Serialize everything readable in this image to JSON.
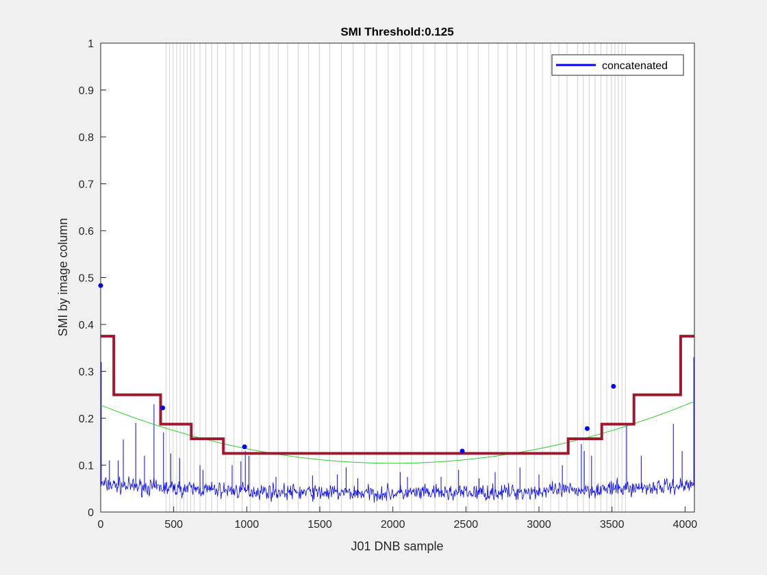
{
  "chart_data": {
    "type": "line",
    "title": "SMI Threshold:0.125",
    "xlabel": "J01 DNB sample",
    "ylabel": "SMI by image column",
    "xlim": [
      0,
      4064
    ],
    "ylim": [
      0,
      1
    ],
    "x_ticks": [
      0,
      500,
      1000,
      1500,
      2000,
      2500,
      3000,
      3500,
      4000
    ],
    "x_tick_labels": [
      "0",
      "500",
      "1000",
      "1500",
      "2000",
      "2500",
      "3000",
      "3500",
      "4000"
    ],
    "y_ticks": [
      0,
      0.1,
      0.2,
      0.3,
      0.4,
      0.5,
      0.6,
      0.7,
      0.8,
      0.9,
      1
    ],
    "y_tick_labels": [
      "0",
      "0.1",
      "0.2",
      "0.3",
      "0.4",
      "0.5",
      "0.6",
      "0.7",
      "0.8",
      "0.9",
      "1"
    ],
    "grid": false,
    "legend": {
      "placement": "top-right",
      "entries": [
        {
          "label": "concatenated",
          "color": "#0000ff"
        }
      ]
    },
    "vertical_lines_x": [
      448,
      472,
      496,
      520,
      544,
      568,
      592,
      616,
      640,
      680,
      720,
      760,
      800,
      856,
      912,
      968,
      1024,
      1088,
      1152,
      1216,
      1280,
      1352,
      1424,
      1496,
      1568,
      1648,
      1728,
      1808,
      1888,
      1968,
      2048,
      2128,
      2208,
      2288,
      2368,
      2440,
      2512,
      2584,
      2656,
      2720,
      2784,
      2848,
      2912,
      2968,
      3024,
      3080,
      3136,
      3192,
      3264,
      3304,
      3344,
      3384,
      3424,
      3464,
      3496,
      3520,
      3544,
      3568,
      3592
    ],
    "series": [
      {
        "name": "concatenated",
        "color": "#0000ff",
        "kind": "noisy-trace",
        "baseline_quadratic": {
          "a": 4.4e-09,
          "center": 2050,
          "min": 0.04
        },
        "noise_amplitude": 0.012,
        "spikes": [
          {
            "x": 4,
            "y": 0.32
          },
          {
            "x": 60,
            "y": 0.11
          },
          {
            "x": 120,
            "y": 0.11
          },
          {
            "x": 155,
            "y": 0.155
          },
          {
            "x": 240,
            "y": 0.19
          },
          {
            "x": 300,
            "y": 0.12
          },
          {
            "x": 365,
            "y": 0.23
          },
          {
            "x": 430,
            "y": 0.17
          },
          {
            "x": 480,
            "y": 0.125
          },
          {
            "x": 540,
            "y": 0.115
          },
          {
            "x": 680,
            "y": 0.1
          },
          {
            "x": 700,
            "y": 0.09
          },
          {
            "x": 900,
            "y": 0.1
          },
          {
            "x": 960,
            "y": 0.108
          },
          {
            "x": 990,
            "y": 0.13
          },
          {
            "x": 1015,
            "y": 0.12
          },
          {
            "x": 1200,
            "y": 0.075
          },
          {
            "x": 1450,
            "y": 0.078
          },
          {
            "x": 1620,
            "y": 0.08
          },
          {
            "x": 1680,
            "y": 0.095
          },
          {
            "x": 1760,
            "y": 0.072
          },
          {
            "x": 2050,
            "y": 0.085
          },
          {
            "x": 2100,
            "y": 0.075
          },
          {
            "x": 2330,
            "y": 0.075
          },
          {
            "x": 2450,
            "y": 0.09
          },
          {
            "x": 2590,
            "y": 0.072
          },
          {
            "x": 2700,
            "y": 0.085
          },
          {
            "x": 2870,
            "y": 0.095
          },
          {
            "x": 3000,
            "y": 0.08
          },
          {
            "x": 3160,
            "y": 0.1
          },
          {
            "x": 3290,
            "y": 0.145
          },
          {
            "x": 3310,
            "y": 0.13
          },
          {
            "x": 3360,
            "y": 0.12
          },
          {
            "x": 3600,
            "y": 0.185
          },
          {
            "x": 3700,
            "y": 0.12
          },
          {
            "x": 3920,
            "y": 0.188
          },
          {
            "x": 3980,
            "y": 0.13
          },
          {
            "x": 4060,
            "y": 0.33
          }
        ]
      },
      {
        "name": "",
        "color": "#a0182d",
        "kind": "step",
        "points": [
          [
            0,
            0.375
          ],
          [
            90,
            0.375
          ],
          [
            90,
            0.25
          ],
          [
            410,
            0.25
          ],
          [
            410,
            0.1875
          ],
          [
            620,
            0.1875
          ],
          [
            620,
            0.15625
          ],
          [
            840,
            0.15625
          ],
          [
            840,
            0.125
          ],
          [
            3200,
            0.125
          ],
          [
            3200,
            0.15625
          ],
          [
            3430,
            0.15625
          ],
          [
            3430,
            0.1875
          ],
          [
            3650,
            0.1875
          ],
          [
            3650,
            0.25
          ],
          [
            3970,
            0.25
          ],
          [
            3970,
            0.375
          ],
          [
            4064,
            0.375
          ]
        ]
      },
      {
        "name": "",
        "color": "#2ecc2e",
        "kind": "quadratic-fit",
        "coefficients": {
          "a": 3.1e-08,
          "center": 2000,
          "min": 0.104
        }
      },
      {
        "name": "",
        "color": "#0000ff",
        "kind": "scatter",
        "points": [
          [
            0,
            0.483
          ],
          [
            425,
            0.222
          ],
          [
            985,
            0.139
          ],
          [
            2475,
            0.13
          ],
          [
            3330,
            0.178
          ],
          [
            3510,
            0.268
          ]
        ]
      }
    ]
  }
}
